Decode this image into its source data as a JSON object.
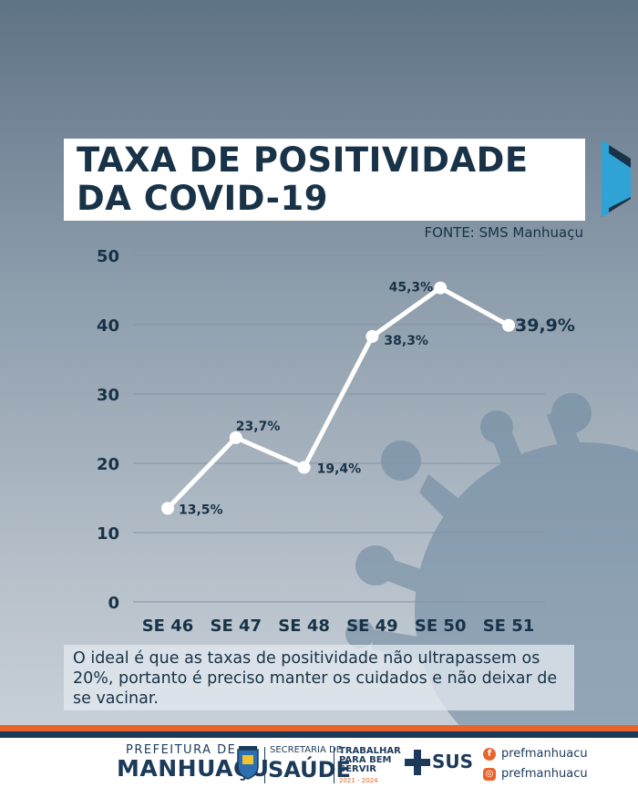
{
  "title": {
    "line1": "TAXA DE POSITIVIDADE",
    "line2": "DA COVID-19"
  },
  "source": "FONTE: SMS Manhuaçu",
  "chart_data": {
    "type": "line",
    "categories": [
      "SE 46",
      "SE 47",
      "SE 48",
      "SE 49",
      "SE 50",
      "SE 51"
    ],
    "values": [
      13.5,
      23.7,
      19.4,
      38.3,
      45.3,
      39.9
    ],
    "data_labels": [
      "13,5%",
      "23,7%",
      "19,4%",
      "38,3%",
      "45,3%",
      "39,9%"
    ],
    "yticks": [
      "0",
      "10",
      "20",
      "30",
      "40",
      "50"
    ],
    "ylim": [
      0,
      50
    ],
    "grid": true,
    "line_color": "#ffffff",
    "label_color": "#183247"
  },
  "note": "O ideal é que as taxas de positividade não ultrapassem os 20%, portanto é preciso manter os cuidados e não deixar de se vacinar.",
  "footer": {
    "prefeitura": "PREFEITURA DE",
    "city": "MANHUAÇU",
    "secretaria": "SECRETARIA DE",
    "saude": "SAÚDE",
    "slogan_line1": "TRABALHAR",
    "slogan_line2": "PARA BEM",
    "slogan_line3": "SERVIR",
    "slogan_years": "2021 - 2024",
    "sus": "SUS",
    "facebook": "prefmanhuacu",
    "instagram": "prefmanhuacu",
    "facebook_icon": "facebook-icon",
    "instagram_icon": "instagram-icon"
  },
  "colors": {
    "navy": "#183247",
    "orange": "#e8642c",
    "virus": "#6c8aa2"
  }
}
